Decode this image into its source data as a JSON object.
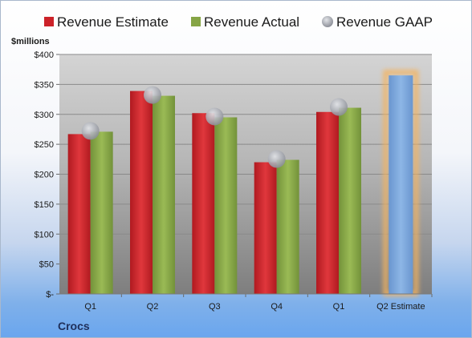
{
  "chart_data": {
    "type": "bar",
    "unit_label": "$millions",
    "company": "Crocs",
    "categories": [
      "Q1",
      "Q2",
      "Q3",
      "Q4",
      "Q1",
      "Q2 Estimate"
    ],
    "ylim": [
      0,
      400
    ],
    "yticks": [
      {
        "value": 400,
        "label": "$400"
      },
      {
        "value": 350,
        "label": "$350"
      },
      {
        "value": 300,
        "label": "$300"
      },
      {
        "value": 250,
        "label": "$250"
      },
      {
        "value": 200,
        "label": "$200"
      },
      {
        "value": 150,
        "label": "$150"
      },
      {
        "value": 100,
        "label": "$100"
      },
      {
        "value": 50,
        "label": "$50"
      },
      {
        "value": 0,
        "label": "$-"
      }
    ],
    "grid": true,
    "legend_position": "top",
    "series": [
      {
        "name": "Revenue Estimate",
        "color": "#cc2229",
        "values": [
          267,
          339,
          302,
          220,
          304,
          null
        ]
      },
      {
        "name": "Revenue Actual",
        "color": "#86a545",
        "values": [
          271,
          331,
          295,
          224,
          311,
          null
        ]
      },
      {
        "name": "Revenue GAAP",
        "color": "#a3a7b0",
        "values": [
          271,
          331,
          295,
          224,
          311,
          null
        ]
      }
    ],
    "estimate": {
      "category": "Q2 Estimate",
      "value": 365,
      "color": "#7ba7dc",
      "glow": "#f4b460"
    }
  }
}
